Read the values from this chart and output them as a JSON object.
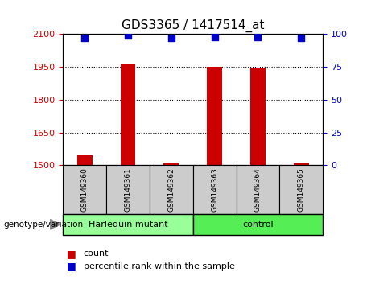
{
  "title": "GDS3365 / 1417514_at",
  "samples": [
    "GSM149360",
    "GSM149361",
    "GSM149362",
    "GSM149363",
    "GSM149364",
    "GSM149365"
  ],
  "bar_values": [
    1545,
    1963,
    1510,
    1951,
    1942,
    1510
  ],
  "percentile_values": [
    97,
    99,
    97,
    98,
    98,
    97
  ],
  "ylim_left": [
    1500,
    2100
  ],
  "ylim_right": [
    0,
    100
  ],
  "yticks_left": [
    1500,
    1650,
    1800,
    1950,
    2100
  ],
  "yticks_right": [
    0,
    25,
    50,
    75,
    100
  ],
  "bar_color": "#cc0000",
  "dot_color": "#0000cc",
  "groups": [
    {
      "label": "Harlequin mutant",
      "indices": [
        0,
        1,
        2
      ],
      "color": "#99ff99"
    },
    {
      "label": "control",
      "indices": [
        3,
        4,
        5
      ],
      "color": "#55ee55"
    }
  ],
  "group_label": "genotype/variation",
  "legend_count_label": "count",
  "legend_pct_label": "percentile rank within the sample",
  "left_tick_color": "#cc0000",
  "right_tick_color": "#0000cc",
  "bar_width": 0.35,
  "dot_size": 40,
  "sample_box_color": "#cccccc",
  "grid_linestyle": ":"
}
